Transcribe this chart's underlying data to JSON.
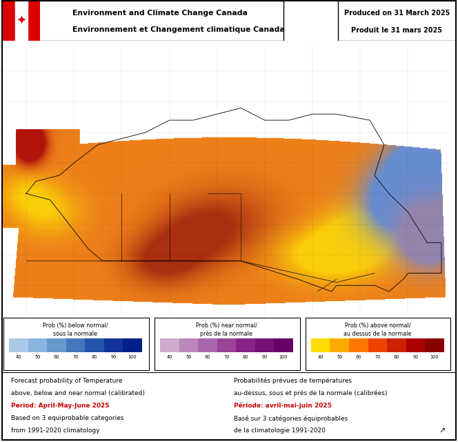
{
  "title_line1": "Environment and Climate Change Canada",
  "title_line2": "Environnement et Changement climatique Canada",
  "produced_line1": "Produced on 31 March 2025",
  "produced_line2": "Produit le 31 mars 2025",
  "legend_below_title1": "Prob (%) below normal/",
  "legend_below_title2": "sous la normale",
  "legend_near_title1": "Prob (%) near normal/",
  "legend_near_title2": "près de la normale",
  "legend_above_title1": "Prob (%) above normal/",
  "legend_above_title2": "au dessus de la normale",
  "legend_ticks": [
    40,
    50,
    60,
    70,
    80,
    90,
    100
  ],
  "below_colors": [
    "#aac8e8",
    "#88b4de",
    "#6699cc",
    "#4477bb",
    "#2255aa",
    "#113399",
    "#002288"
  ],
  "near_colors": [
    "#ccaacc",
    "#bb88bb",
    "#aa66aa",
    "#994499",
    "#882288",
    "#771177",
    "#660066"
  ],
  "above_colors": [
    "#ffdd00",
    "#ffaa00",
    "#ff7700",
    "#ee4400",
    "#cc2200",
    "#aa0000",
    "#880000"
  ],
  "footer_left_black1": "Forecast probability of Temperature",
  "footer_left_black2": "above, below and near normal (calibrated)",
  "footer_left_red": "Period: April-May-June 2025",
  "footer_left_black3": "Based on 3 equiprobable categories",
  "footer_left_black4": "from 1991-2020 climatology",
  "footer_right_black1": "Probabilités prévues de températures",
  "footer_right_black2": "au-dessus, sous et près de la normale (calibrées)",
  "footer_right_red": "Période: avril-mai-juin 2025",
  "footer_right_black3": "Basé sur 3 catégories équiprobables",
  "footer_right_black4": "de la climatologie 1991-2020",
  "flag_red": "#dd0000",
  "ocean_color": "#ffffff",
  "map_border": "#000000"
}
